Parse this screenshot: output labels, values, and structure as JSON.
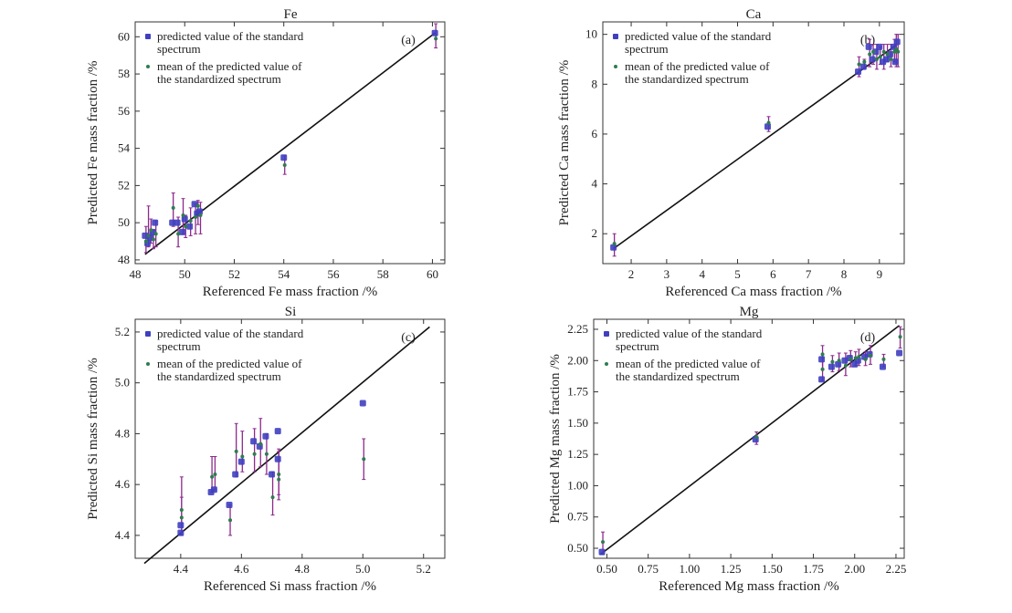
{
  "figure": {
    "colors": {
      "standard_marker": "#3f3fc0",
      "mean_marker": "#2e7d4f",
      "error_bar": "#8b2a8b",
      "fit_line": "#111111",
      "axis": "#333333"
    }
  },
  "chart_data": [
    {
      "type": "scatter",
      "panel": "(a)",
      "title": "Fe",
      "xlabel": "Referenced Fe mass fraction /%",
      "ylabel": "Predicted Fe mass fraction /%",
      "xlim": [
        48,
        60.5
      ],
      "ylim": [
        47.8,
        60.8
      ],
      "xticks": [
        48,
        50,
        52,
        54,
        56,
        58,
        60
      ],
      "yticks": [
        48,
        50,
        52,
        54,
        56,
        58,
        60
      ],
      "xtick_labels": [
        "48",
        "50",
        "52",
        "54",
        "56",
        "58",
        "60"
      ],
      "ytick_labels": [
        "48",
        "50",
        "52",
        "54",
        "56",
        "58",
        "60"
      ],
      "line": [
        [
          48.4,
          48.3
        ],
        [
          60.1,
          60.2
        ]
      ],
      "legend": [
        "predicted value of the standard spectrum",
        "mean of the predicted value of the standardized spectrum"
      ],
      "legend_placement": "top-left",
      "series": [
        {
          "name": "predicted value of the standard spectrum",
          "x": [
            48.4,
            48.5,
            48.6,
            48.7,
            48.8,
            49.5,
            49.7,
            49.9,
            50.0,
            50.2,
            50.4,
            50.5,
            50.6,
            54.0,
            60.1
          ],
          "y": [
            49.3,
            48.9,
            49.2,
            49.5,
            50.0,
            50.0,
            50.0,
            49.5,
            50.2,
            49.8,
            51.0,
            50.5,
            50.6,
            53.5,
            60.2
          ]
        },
        {
          "name": "mean of the predicted value of the standardized spectrum",
          "x": [
            48.4,
            48.5,
            48.6,
            48.7,
            48.8,
            49.5,
            49.7,
            49.9,
            50.0,
            50.2,
            50.4,
            50.5,
            50.6,
            54.0,
            60.1
          ],
          "y": [
            49.0,
            49.3,
            49.6,
            49.1,
            49.4,
            50.8,
            49.4,
            50.4,
            49.8,
            50.1,
            50.3,
            50.9,
            50.4,
            53.1,
            59.9
          ],
          "error_low": [
            48.4,
            48.7,
            48.9,
            48.6,
            48.7,
            49.8,
            48.7,
            49.4,
            49.2,
            49.3,
            49.4,
            49.9,
            49.4,
            52.6,
            59.4
          ],
          "error_high": [
            49.8,
            50.9,
            50.2,
            49.6,
            50.1,
            51.6,
            50.3,
            51.3,
            50.4,
            50.8,
            51.0,
            51.2,
            51.1,
            53.6,
            60.7
          ]
        }
      ]
    },
    {
      "type": "scatter",
      "panel": "(b)",
      "title": "Ca",
      "xlabel": "Referenced Ca mass fraction /%",
      "ylabel": "Predicted Ca mass fraction /%",
      "xlim": [
        1.2,
        9.7
      ],
      "ylim": [
        0.8,
        10.5
      ],
      "xticks": [
        2,
        3,
        4,
        5,
        6,
        7,
        8,
        9
      ],
      "yticks": [
        2,
        4,
        6,
        8,
        10
      ],
      "xtick_labels": [
        "2",
        "3",
        "4",
        "5",
        "6",
        "7",
        "8",
        "9"
      ],
      "ytick_labels": [
        "2",
        "4",
        "6",
        "8",
        "10"
      ],
      "line": [
        [
          1.5,
          1.4
        ],
        [
          9.5,
          9.6
        ]
      ],
      "legend": [
        "predicted value of the standard spectrum",
        "mean of the predicted value of the standardized spectrum"
      ],
      "legend_placement": "top-left",
      "series": [
        {
          "name": "predicted value of the standard spectrum",
          "x": [
            1.5,
            5.85,
            8.4,
            8.55,
            8.7,
            8.8,
            8.9,
            9.0,
            9.1,
            9.2,
            9.3,
            9.4,
            9.45,
            9.5
          ],
          "y": [
            1.45,
            6.3,
            8.5,
            8.7,
            9.5,
            9.0,
            9.3,
            9.5,
            8.9,
            9.0,
            9.2,
            9.5,
            8.9,
            9.7
          ]
        },
        {
          "name": "mean of the predicted value of the standardized spectrum",
          "x": [
            1.5,
            5.85,
            8.4,
            8.55,
            8.7,
            8.8,
            8.9,
            9.0,
            9.1,
            9.2,
            9.3,
            9.4,
            9.45,
            9.5
          ],
          "y": [
            1.6,
            6.45,
            8.8,
            8.9,
            9.2,
            9.3,
            9.0,
            9.1,
            9.3,
            9.2,
            9.0,
            9.3,
            9.4,
            9.3
          ],
          "error_low": [
            1.1,
            6.1,
            8.3,
            8.6,
            8.7,
            8.8,
            8.6,
            8.8,
            8.6,
            8.9,
            8.7,
            8.9,
            8.7,
            8.7
          ],
          "error_high": [
            2.0,
            6.7,
            9.1,
            9.0,
            9.8,
            9.6,
            9.6,
            9.5,
            9.6,
            9.6,
            9.6,
            9.8,
            10.0,
            10.0
          ]
        }
      ]
    },
    {
      "type": "scatter",
      "panel": "(c)",
      "title": "Si",
      "xlabel": "Referenced Si mass fraction /%",
      "ylabel": "Predicted Si mass fraction /%",
      "xlim": [
        4.25,
        5.27
      ],
      "ylim": [
        4.31,
        5.25
      ],
      "xticks": [
        4.4,
        4.6,
        4.8,
        5.0,
        5.2
      ],
      "yticks": [
        4.4,
        4.6,
        4.8,
        5.0,
        5.2
      ],
      "xtick_labels": [
        "4.4",
        "4.6",
        "4.8",
        "5.0",
        "5.2"
      ],
      "ytick_labels": [
        "4.4",
        "4.6",
        "4.8",
        "5.0",
        "5.2"
      ],
      "line": [
        [
          4.28,
          4.29
        ],
        [
          5.22,
          5.22
        ]
      ],
      "legend": [
        "predicted value of the standard spectrum",
        "mean of the predicted value of the standardized spectrum"
      ],
      "legend_placement": "top-left",
      "series": [
        {
          "name": "predicted value of the standard spectrum",
          "x": [
            4.4,
            4.4,
            4.5,
            4.51,
            4.56,
            4.58,
            4.6,
            4.64,
            4.66,
            4.68,
            4.7,
            4.72,
            4.72,
            5.0
          ],
          "y": [
            4.44,
            4.41,
            4.57,
            4.58,
            4.52,
            4.64,
            4.69,
            4.77,
            4.75,
            4.79,
            4.64,
            4.81,
            4.7,
            4.92
          ]
        },
        {
          "name": "mean of the predicted value of the standardized spectrum",
          "x": [
            4.4,
            4.4,
            4.5,
            4.51,
            4.56,
            4.58,
            4.6,
            4.64,
            4.66,
            4.68,
            4.7,
            4.72,
            4.72,
            5.0
          ],
          "y": [
            4.5,
            4.47,
            4.63,
            4.64,
            4.46,
            4.73,
            4.71,
            4.72,
            4.76,
            4.72,
            4.55,
            4.62,
            4.64,
            4.7
          ],
          "error_low": [
            4.4,
            4.4,
            4.57,
            4.58,
            4.4,
            4.63,
            4.65,
            4.65,
            4.67,
            4.64,
            4.48,
            4.54,
            4.56,
            4.62
          ],
          "error_high": [
            4.63,
            4.55,
            4.71,
            4.71,
            4.52,
            4.84,
            4.81,
            4.82,
            4.86,
            4.8,
            4.65,
            4.73,
            4.74,
            4.78
          ]
        }
      ]
    },
    {
      "type": "scatter",
      "panel": "(d)",
      "title": "Mg",
      "xlabel": "Referenced Mg mass fraction /%",
      "ylabel": "Predicted Mg mass fraction /%",
      "xlim": [
        0.42,
        2.3
      ],
      "ylim": [
        0.42,
        2.33
      ],
      "xticks": [
        0.5,
        0.75,
        1.0,
        1.25,
        1.5,
        1.75,
        2.0,
        2.25
      ],
      "yticks": [
        0.5,
        0.75,
        1.0,
        1.25,
        1.5,
        1.75,
        2.0,
        2.25
      ],
      "xtick_labels": [
        "0.50",
        "0.75",
        "1.00",
        "1.25",
        "1.50",
        "1.75",
        "2.00",
        "2.25"
      ],
      "ytick_labels": [
        "0.50",
        "0.75",
        "1.00",
        "1.25",
        "1.50",
        "1.75",
        "2.00",
        "2.25"
      ],
      "line": [
        [
          0.46,
          0.45
        ],
        [
          2.27,
          2.28
        ]
      ],
      "legend": [
        "predicted value of the standard spectrum",
        "mean of the predicted value of the standardized spectrum"
      ],
      "legend_placement": "top-left",
      "series": [
        {
          "name": "predicted value of the standard spectrum",
          "x": [
            0.47,
            1.4,
            1.8,
            1.8,
            1.86,
            1.9,
            1.94,
            1.97,
            2.0,
            2.02,
            2.06,
            2.09,
            2.17,
            2.27
          ],
          "y": [
            0.47,
            1.37,
            1.85,
            2.01,
            1.95,
            1.97,
            2.0,
            2.02,
            1.97,
            2.0,
            2.03,
            2.05,
            1.95,
            2.06
          ]
        },
        {
          "name": "mean of the predicted value of the standardized spectrum",
          "x": [
            0.47,
            1.4,
            1.8,
            1.8,
            1.86,
            1.9,
            1.94,
            1.97,
            2.0,
            2.02,
            2.06,
            2.09,
            2.17,
            2.27
          ],
          "y": [
            0.55,
            1.39,
            1.93,
            2.05,
            1.99,
            2.0,
            1.96,
            2.01,
            2.02,
            2.03,
            2.01,
            2.04,
            2.01,
            2.19
          ],
          "error_low": [
            0.45,
            1.33,
            1.84,
            1.93,
            1.91,
            1.92,
            1.88,
            1.95,
            1.96,
            1.96,
            1.96,
            1.97,
            1.95,
            2.1
          ],
          "error_high": [
            0.63,
            1.43,
            2.03,
            2.12,
            2.04,
            2.06,
            2.06,
            2.08,
            2.07,
            2.09,
            2.07,
            2.12,
            2.05,
            2.27
          ]
        }
      ]
    }
  ]
}
